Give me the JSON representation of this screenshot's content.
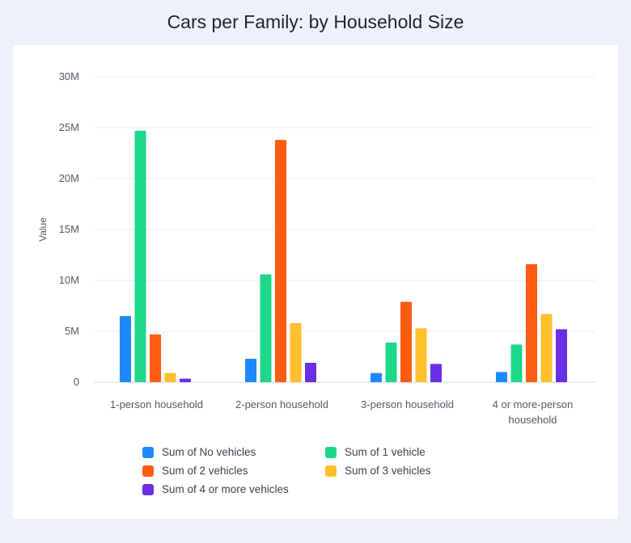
{
  "title": "Cars per Family: by Household Size",
  "chart_data": {
    "type": "bar",
    "title": "Cars per Family: by Household Size",
    "ylabel": "Value",
    "xlabel": "",
    "ylim": [
      0,
      30000000
    ],
    "y_ticks": [
      "0",
      "5M",
      "10M",
      "15M",
      "20M",
      "25M",
      "30M"
    ],
    "categories": [
      [
        "1-person household"
      ],
      [
        "2-person household"
      ],
      [
        "3-person household"
      ],
      [
        "4 or more-person",
        "household"
      ]
    ],
    "series": [
      {
        "name": "Sum of No vehicles",
        "color": "#1e88ff",
        "values": [
          6500000,
          2300000,
          900000,
          1000000
        ]
      },
      {
        "name": "Sum of 1 vehicle",
        "color": "#1ed88a",
        "values": [
          24700000,
          10600000,
          3900000,
          3700000
        ]
      },
      {
        "name": "Sum of 2 vehicles",
        "color": "#ff5c12",
        "values": [
          4700000,
          23800000,
          7900000,
          11600000
        ]
      },
      {
        "name": "Sum of 3 vehicles",
        "color": "#ffc02e",
        "values": [
          900000,
          5800000,
          5300000,
          6700000
        ]
      },
      {
        "name": "Sum of 4 or more vehicles",
        "color": "#6a2ee6",
        "values": [
          350000,
          1900000,
          1800000,
          5200000
        ]
      }
    ],
    "grid": true,
    "legend_position": "bottom"
  }
}
